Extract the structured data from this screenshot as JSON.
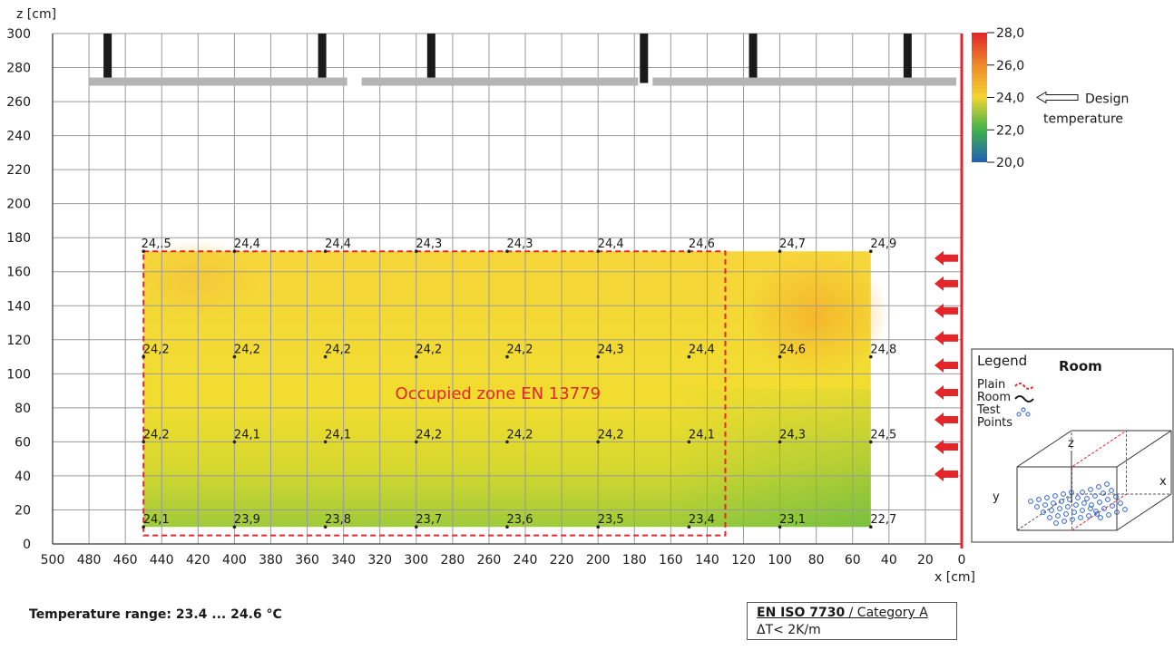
{
  "chart_data": {
    "type": "heatmap",
    "xlabel": "x [cm]",
    "ylabel": "z [cm]",
    "xlim": [
      500,
      0
    ],
    "ylim": [
      0,
      300
    ],
    "x_ticks": [
      "500",
      "480",
      "460",
      "440",
      "420",
      "400",
      "380",
      "360",
      "340",
      "320",
      "300",
      "280",
      "260",
      "240",
      "220",
      "200",
      "180",
      "160",
      "140",
      "120",
      "100",
      "80",
      "60",
      "40",
      "20",
      "0"
    ],
    "y_ticks": [
      "0",
      "20",
      "40",
      "60",
      "80",
      "100",
      "120",
      "140",
      "160",
      "180",
      "200",
      "220",
      "240",
      "260",
      "280",
      "300"
    ],
    "grid": true,
    "measurement_rows": [
      {
        "z": 172,
        "x": [
          450,
          400,
          350,
          300,
          250,
          200,
          150,
          100,
          50
        ],
        "labels": [
          "24,.5",
          "24,4",
          "24,4",
          "24,3",
          "24,3",
          "24,4",
          "24,6",
          "24,7",
          "24,9"
        ]
      },
      {
        "z": 110,
        "x": [
          450,
          400,
          350,
          300,
          250,
          200,
          150,
          100,
          50
        ],
        "labels": [
          "24,2",
          "24,2",
          "24,2",
          "24,2",
          "24,2",
          "24,3",
          "24,4",
          "24,6",
          "24,8"
        ]
      },
      {
        "z": 60,
        "x": [
          450,
          400,
          350,
          300,
          250,
          200,
          150,
          100,
          50
        ],
        "labels": [
          "24,2",
          "24,1",
          "24,1",
          "24,2",
          "24,2",
          "24,2",
          "24,1",
          "24,3",
          "24,5"
        ]
      },
      {
        "z": 10,
        "x": [
          450,
          400,
          350,
          300,
          250,
          200,
          150,
          100,
          50
        ],
        "labels": [
          "24,1",
          "23,9",
          "23,8",
          "23,7",
          "23,6",
          "23,5",
          "23,4",
          "23,1",
          "22,7"
        ]
      }
    ],
    "annotations": {
      "occupied_zone_label": "Occupied zone EN 13779",
      "occupied_zone": {
        "x": [
          450,
          130
        ],
        "z": [
          5,
          172
        ]
      },
      "ceiling_panels": [
        [
          480,
          335
        ],
        [
          330,
          175
        ],
        [
          170,
          0
        ]
      ],
      "ceiling_z": 272,
      "hangers_x": [
        470,
        352,
        292,
        175,
        115,
        30
      ],
      "air_inlet_z": [
        168,
        153,
        137,
        121,
        105,
        89,
        73,
        57,
        41
      ]
    },
    "colorbar": {
      "ticks": [
        "28,0",
        "26,0",
        "24,0",
        "22,0",
        "20,0"
      ],
      "range": [
        20,
        28
      ],
      "design_label": "Design temperature",
      "design_value": 24.0,
      "colors": [
        "#e0242a",
        "#f08a2a",
        "#f2d531",
        "#3fb24a",
        "#1f5fb8"
      ]
    },
    "legend": {
      "title": "Legend",
      "room_title": "Room",
      "items": [
        "Plain",
        "Room",
        "Test",
        "Points"
      ],
      "axis_x": "x",
      "axis_y": "y",
      "axis_z": "z"
    }
  },
  "footer": {
    "range": "Temperature range: 23.4 ... 24.6 °C",
    "standard": "EN ISO 7730",
    "category": " / Category A",
    "gradient": "ΔT< 2K/m"
  }
}
